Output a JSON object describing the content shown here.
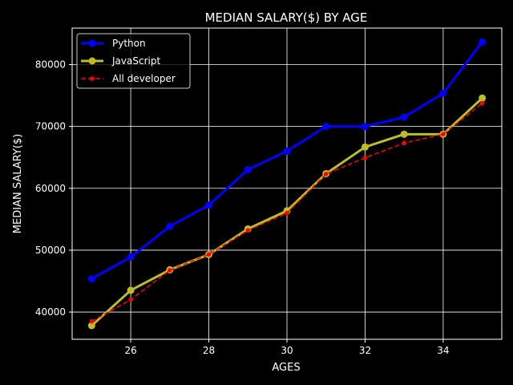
{
  "chart_data": {
    "type": "line",
    "title": "MEDIAN SALARY($) BY AGE",
    "xlabel": "AGES",
    "ylabel": "MEDIAN SALARY($)",
    "x": [
      25,
      26,
      27,
      28,
      29,
      30,
      31,
      32,
      33,
      34,
      35
    ],
    "xlim": [
      24.5,
      35.5
    ],
    "ylim": [
      35600,
      85900
    ],
    "xticks": [
      26,
      28,
      30,
      32,
      34
    ],
    "yticks": [
      40000,
      50000,
      60000,
      70000,
      80000
    ],
    "grid": true,
    "legend_position": "top-left",
    "series": [
      {
        "name": "Python",
        "color": "#0000ff",
        "style": "solid",
        "marker": "circle",
        "values": [
          45372,
          48876,
          53850,
          57287,
          63016,
          65998,
          70003,
          70000,
          71496,
          75370,
          83640
        ]
      },
      {
        "name": "JavaScript",
        "color": "#bcbd22",
        "style": "solid",
        "marker": "circle",
        "values": [
          37810,
          43515,
          46823,
          49293,
          53437,
          56373,
          62375,
          66674,
          68745,
          68746,
          74583
        ]
      },
      {
        "name": "All developer",
        "color": "#ff0000",
        "style": "dashed",
        "marker": "dot",
        "values": [
          38496,
          42000,
          46752,
          49320,
          53200,
          56000,
          62316,
          64928,
          67317,
          68748,
          73752
        ]
      }
    ]
  }
}
